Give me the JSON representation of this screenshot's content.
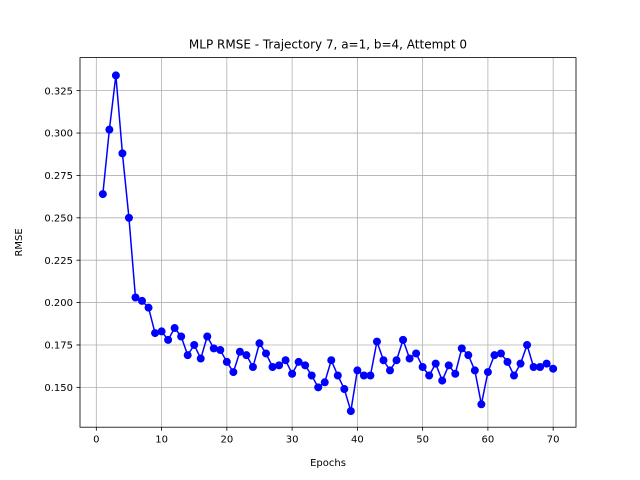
{
  "chart_data": {
    "type": "line",
    "title": "MLP RMSE - Trajectory 7, a=1, b=4, Attempt 0",
    "xlabel": "Epochs",
    "ylabel": "RMSE",
    "xlim": [
      -2.5,
      73.5
    ],
    "ylim": [
      0.1265,
      0.3445
    ],
    "xticks": [
      0,
      10,
      20,
      30,
      40,
      50,
      60,
      70
    ],
    "yticks": [
      0.15,
      0.175,
      0.2,
      0.225,
      0.25,
      0.275,
      0.3,
      0.325
    ],
    "xtick_labels": [
      "0",
      "10",
      "20",
      "30",
      "40",
      "50",
      "60",
      "70"
    ],
    "ytick_labels": [
      "0.150",
      "0.175",
      "0.200",
      "0.225",
      "0.250",
      "0.275",
      "0.300",
      "0.325"
    ],
    "grid": true,
    "series": [
      {
        "color": "#0000ff",
        "marker": "circle",
        "x": [
          1,
          2,
          3,
          4,
          5,
          6,
          7,
          8,
          9,
          10,
          11,
          12,
          13,
          14,
          15,
          16,
          17,
          18,
          19,
          20,
          21,
          22,
          23,
          24,
          25,
          26,
          27,
          28,
          29,
          30,
          31,
          32,
          33,
          34,
          35,
          36,
          37,
          38,
          39,
          40,
          41,
          42,
          43,
          44,
          45,
          46,
          47,
          48,
          49,
          50,
          51,
          52,
          53,
          54,
          55,
          56,
          57,
          58,
          59,
          60,
          61,
          62,
          63,
          64,
          65,
          66,
          67,
          68,
          69,
          70
        ],
        "values": [
          0.264,
          0.302,
          0.334,
          0.288,
          0.25,
          0.203,
          0.201,
          0.197,
          0.182,
          0.183,
          0.178,
          0.185,
          0.18,
          0.169,
          0.175,
          0.167,
          0.18,
          0.173,
          0.172,
          0.165,
          0.159,
          0.171,
          0.169,
          0.162,
          0.176,
          0.17,
          0.162,
          0.163,
          0.166,
          0.158,
          0.165,
          0.163,
          0.157,
          0.15,
          0.153,
          0.166,
          0.157,
          0.149,
          0.136,
          0.16,
          0.157,
          0.157,
          0.177,
          0.166,
          0.16,
          0.166,
          0.178,
          0.167,
          0.17,
          0.162,
          0.157,
          0.164,
          0.154,
          0.163,
          0.158,
          0.173,
          0.169,
          0.16,
          0.14,
          0.159,
          0.169,
          0.17,
          0.165,
          0.157,
          0.164,
          0.175,
          0.162,
          0.162,
          0.164,
          0.161
        ]
      }
    ]
  }
}
